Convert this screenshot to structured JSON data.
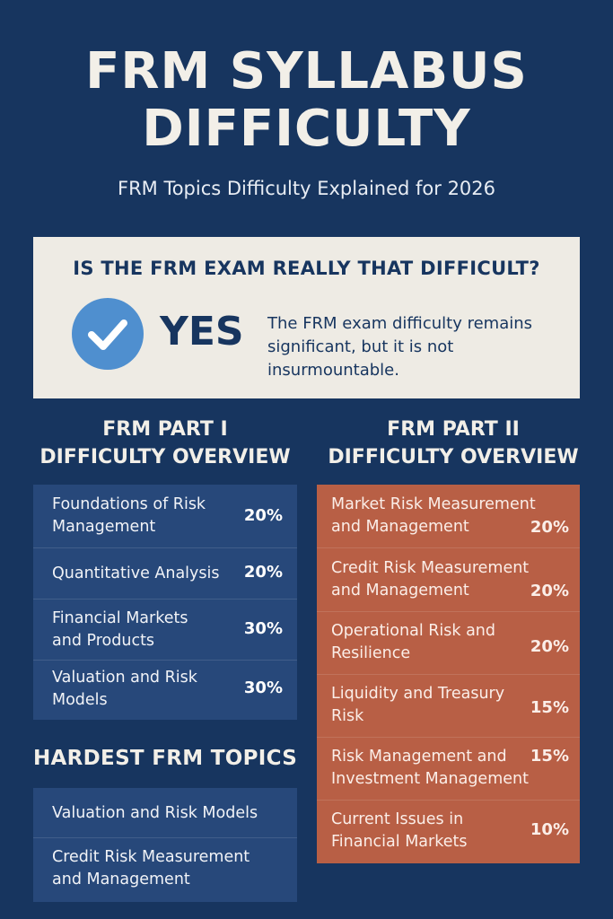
{
  "header": {
    "title_line1": "FRM SYLLABUS",
    "title_line2": "DIFFICULTY",
    "subtitle": "FRM Topics Difficulty Explained for 2026"
  },
  "question": {
    "text": "IS THE FRM EXAM REALLY THAT DIFFICULT?",
    "answer": "YES",
    "explanation_lines": [
      "The FRM exam difficulty remains",
      "significant, but it is not",
      "insurmountable."
    ],
    "icon": "check-circle-icon",
    "icon_color": "#4f8fcf"
  },
  "part1": {
    "heading_line1": "FRM PART I",
    "heading_line2": "DIFFICULTY OVERVIEW",
    "color": "#27487a",
    "items": [
      {
        "lines": [
          "Foundations of Risk",
          "Management"
        ],
        "pct": "20%"
      },
      {
        "lines": [
          "Quantitative Analysis"
        ],
        "pct": "20%"
      },
      {
        "lines": [
          "Financial Markets",
          "and Products"
        ],
        "pct": "30%"
      },
      {
        "lines": [
          "Valuation and Risk",
          "Models"
        ],
        "pct": "30%"
      }
    ]
  },
  "part2": {
    "heading_line1": "FRM PART II",
    "heading_line2": "DIFFICULTY OVERVIEW",
    "color": "#b85f45",
    "items": [
      {
        "lines": [
          "Market Risk Measurement",
          "and Management"
        ],
        "pct": "20%"
      },
      {
        "lines": [
          "Credit Risk Measurement",
          "and Management"
        ],
        "pct": "20%"
      },
      {
        "lines": [
          "Operational Risk and",
          "Resilience"
        ],
        "pct": "20%"
      },
      {
        "lines": [
          "Liquidity and Treasury",
          "Risk"
        ],
        "pct": "15%"
      },
      {
        "lines": [
          "Risk Management and",
          "Investment Management"
        ],
        "pct": "15%"
      },
      {
        "lines": [
          "Current Issues in",
          "Financial Markets"
        ],
        "pct": "10%"
      }
    ]
  },
  "hardest": {
    "heading": "HARDEST FRM TOPICS",
    "items": [
      {
        "lines": [
          "Valuation and Risk Models"
        ]
      },
      {
        "lines": [
          "Credit Risk Measurement",
          "and Management"
        ]
      }
    ]
  }
}
